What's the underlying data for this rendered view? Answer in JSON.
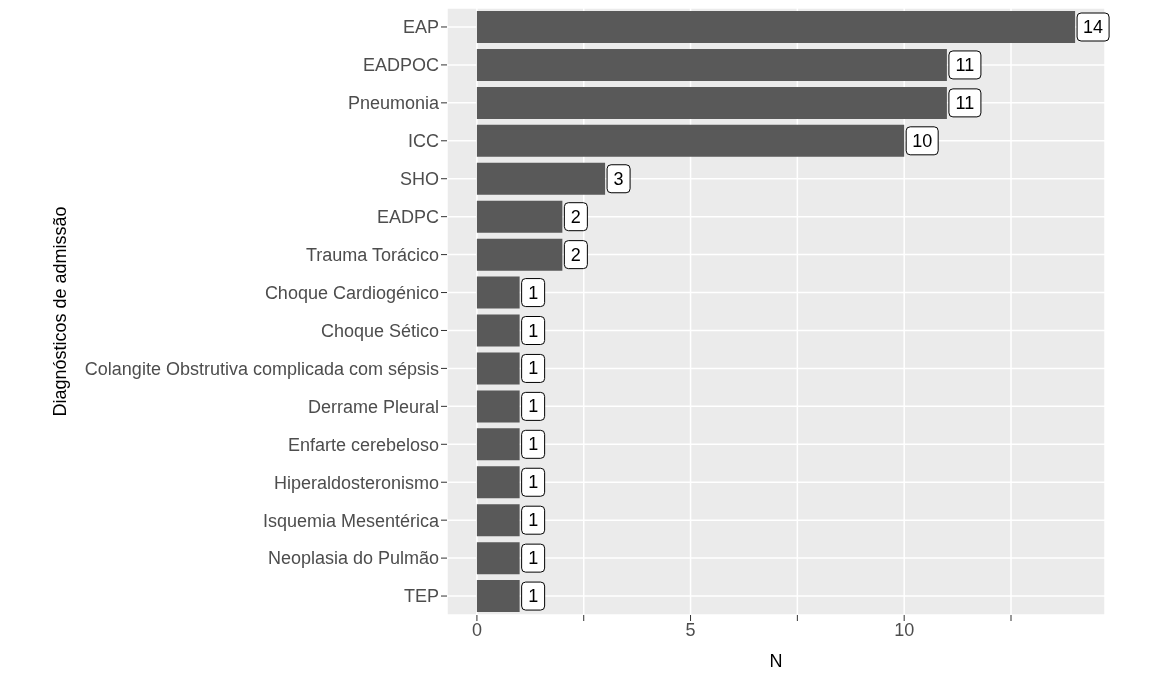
{
  "chart_data": {
    "type": "bar",
    "orientation": "horizontal",
    "xlabel": "N",
    "ylabel": "Diagnósticos de admissão",
    "categories": [
      "EAP",
      "EADPOC",
      "Pneumonia",
      "ICC",
      "SHO",
      "EADPC",
      "Trauma Torácico",
      "Choque Cardiogénico",
      "Choque Sético",
      "Colangite Obstrutiva complicada com sépsis",
      "Derrame Pleural",
      "Enfarte cerebeloso",
      "Hiperaldosteronismo",
      "Isquemia Mesentérica",
      "Neoplasia do Pulmão",
      "TEP"
    ],
    "values": [
      14,
      11,
      11,
      10,
      3,
      2,
      2,
      1,
      1,
      1,
      1,
      1,
      1,
      1,
      1,
      1
    ],
    "color": "#595959",
    "xlim": [
      -0.7,
      14.7
    ],
    "xticks": [
      0,
      {
        "value": 2.5,
        "label": null
      },
      5,
      {
        "value": 7.5,
        "label": null
      },
      10,
      {
        "value": 12.5,
        "label": null
      }
    ],
    "grid": true,
    "data_labels": true
  }
}
